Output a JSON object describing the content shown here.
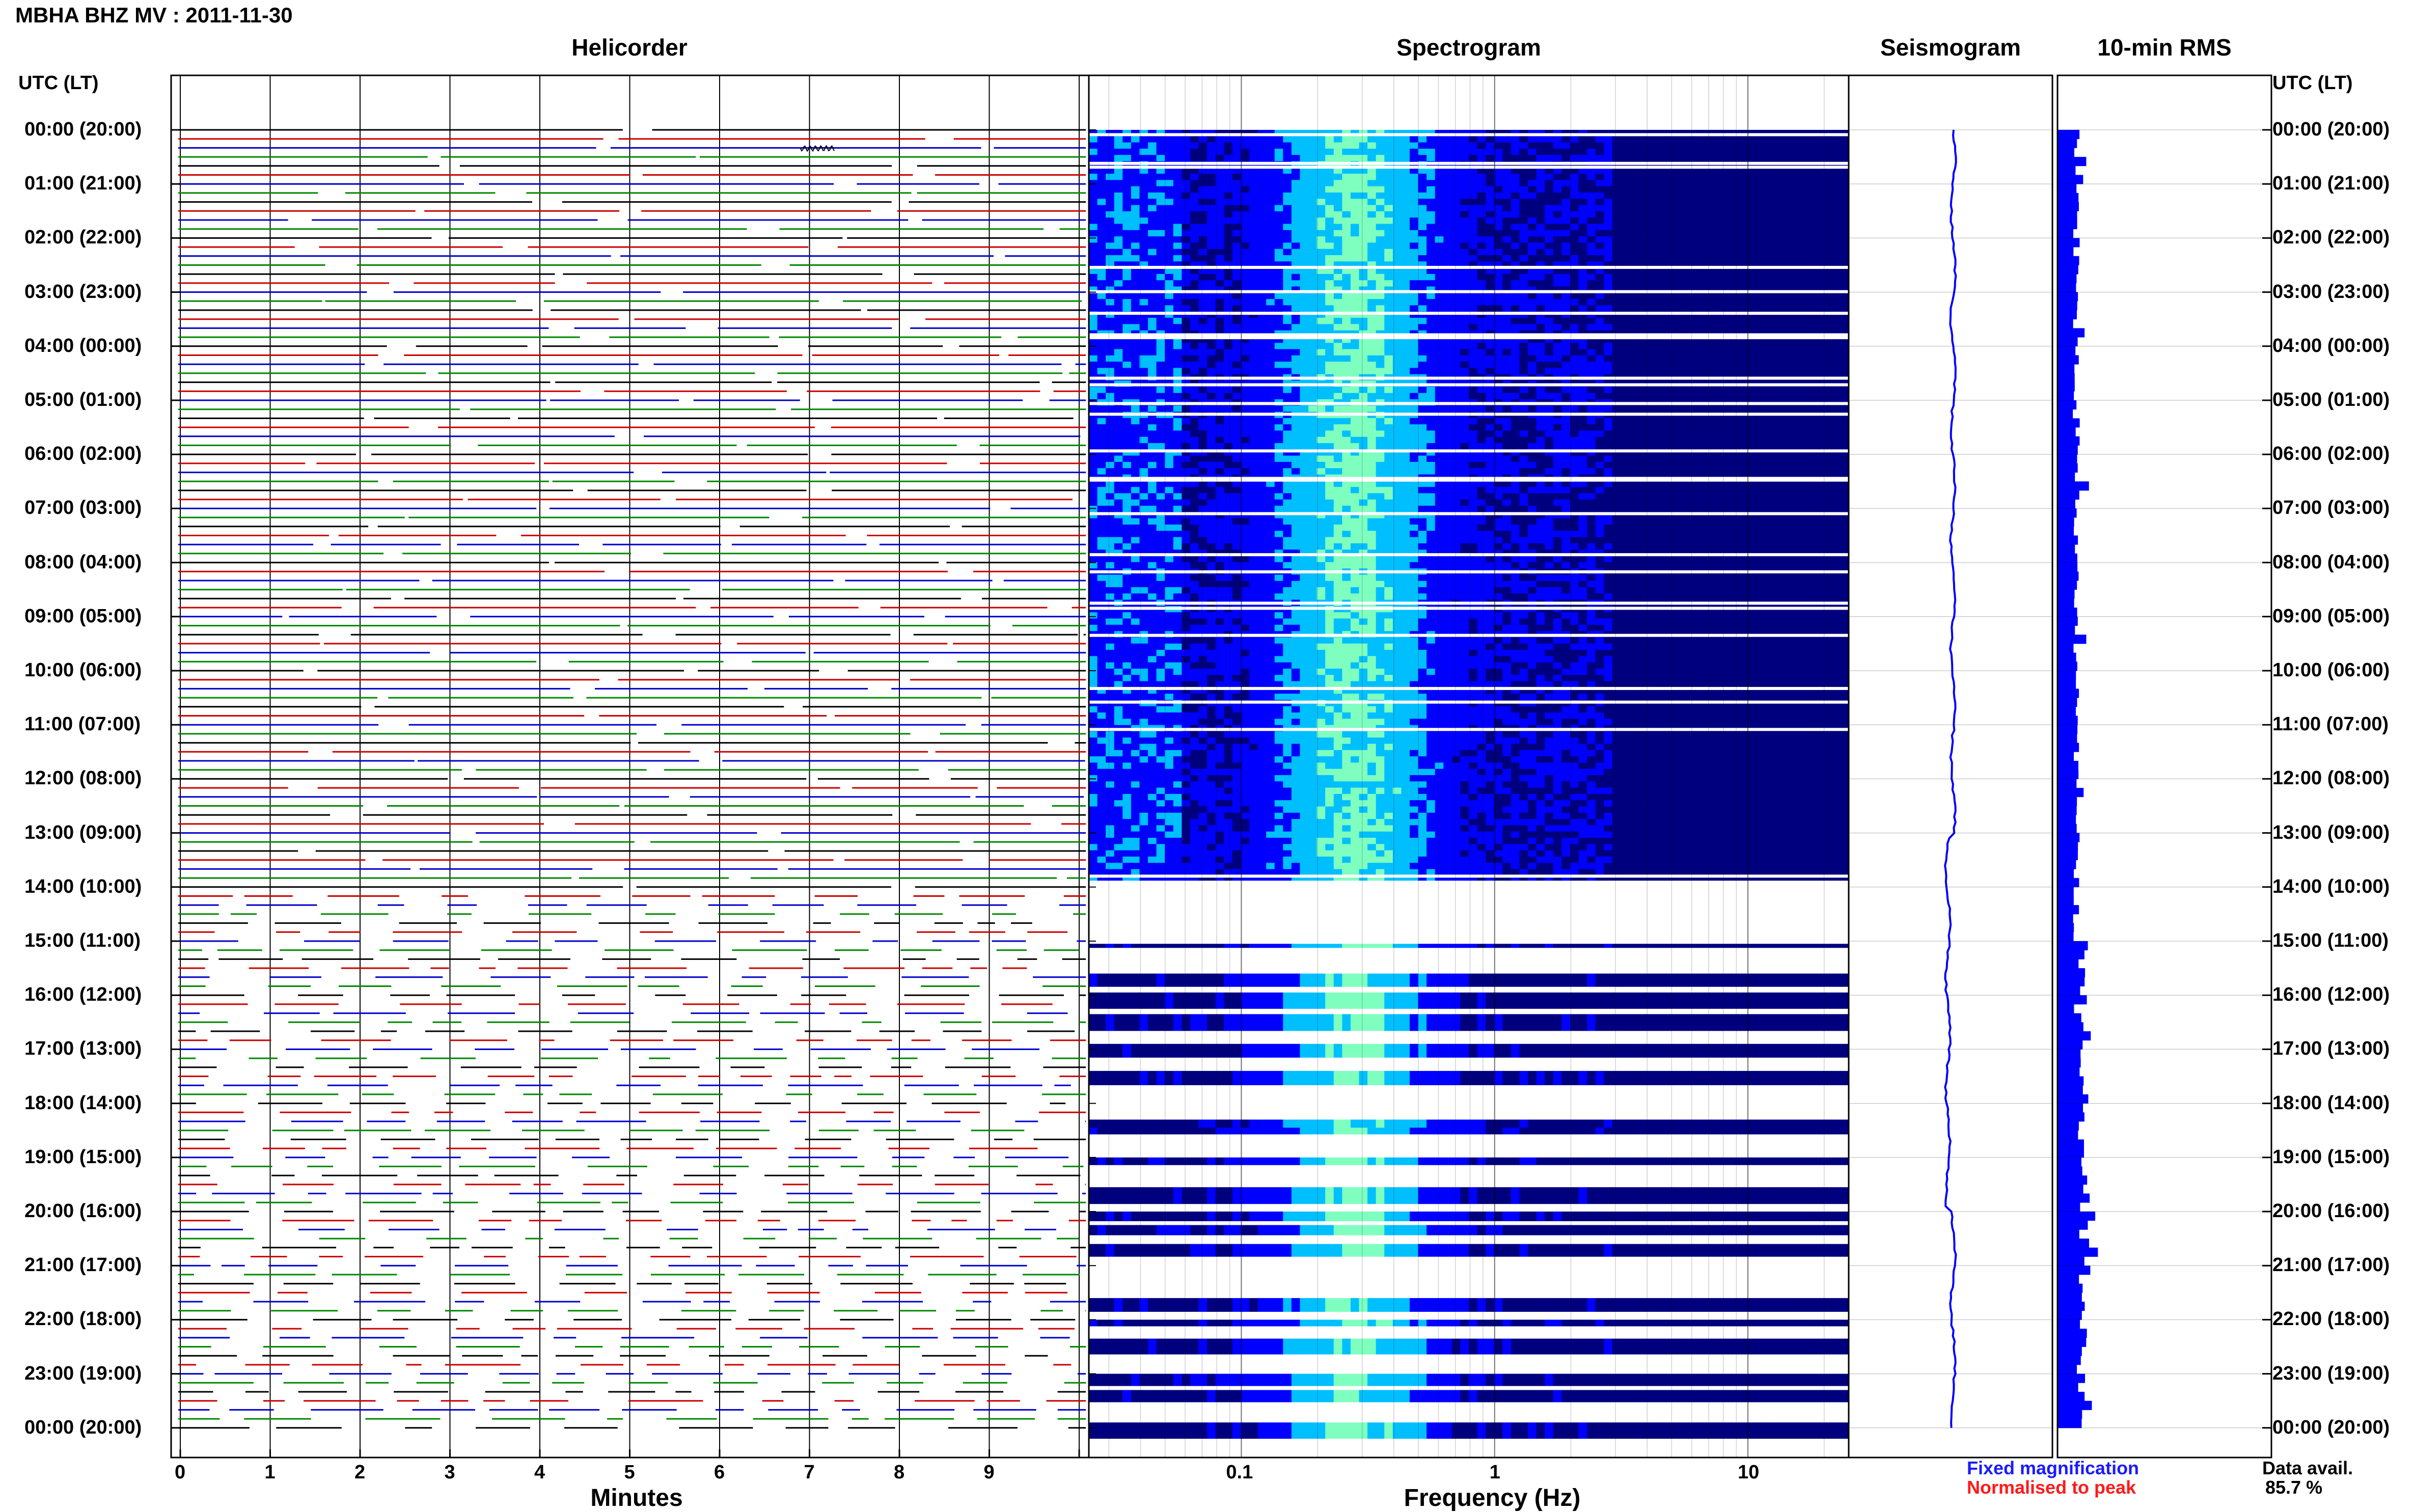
{
  "page": {
    "title": "MBHA BHZ MV : 2011-11-30",
    "utc_header_left": "UTC (LT)",
    "utc_header_right": "UTC (LT)"
  },
  "panels": {
    "helicorder": "Helicorder",
    "spectrogram": "Spectrogram",
    "seismogram": "Seismogram",
    "rms": "10-min RMS"
  },
  "axes": {
    "minutes_label": "Minutes",
    "frequency_label": "Frequency (Hz)",
    "minute_ticks": [
      "0",
      "1",
      "2",
      "3",
      "4",
      "5",
      "6",
      "7",
      "8",
      "9"
    ],
    "frequency_ticks": [
      "0.1",
      "1",
      "10"
    ]
  },
  "legend": {
    "fixed": "Fixed magnification",
    "normalised": "Normalised to peak",
    "fixed_color": "#1a1aff",
    "normalised_color": "#ff1a1a"
  },
  "availability": {
    "label": "Data avail.",
    "value": "85.7 %"
  },
  "time_labels": [
    "00:00 (20:00)",
    "01:00 (21:00)",
    "02:00 (22:00)",
    "03:00 (23:00)",
    "04:00 (00:00)",
    "05:00 (01:00)",
    "06:00 (02:00)",
    "07:00 (03:00)",
    "08:00 (04:00)",
    "09:00 (05:00)",
    "10:00 (06:00)",
    "11:00 (07:00)",
    "12:00 (08:00)",
    "13:00 (09:00)",
    "14:00 (10:00)",
    "15:00 (11:00)",
    "16:00 (12:00)",
    "17:00 (13:00)",
    "18:00 (14:00)",
    "19:00 (15:00)",
    "20:00 (16:00)",
    "21:00 (17:00)",
    "22:00 (18:00)",
    "23:00 (19:00)",
    "00:00 (20:00)"
  ],
  "chart_data": [
    {
      "type": "line",
      "name": "helicorder",
      "title": "Helicorder",
      "xlabel": "Minutes",
      "xlim": [
        0,
        10
      ],
      "rows_per_hour": 6,
      "trace_colors": [
        "#000000",
        "#cc0000",
        "#0000cc",
        "#008800"
      ]
    },
    {
      "type": "heatmap",
      "name": "spectrogram",
      "title": "Spectrogram",
      "xlabel": "Frequency (Hz)",
      "x_scale": "log",
      "xlim": [
        0.025,
        25
      ],
      "colormap": [
        "#00007f",
        "#0000ff",
        "#00bfff",
        "#7fffbf",
        "#ffff00"
      ]
    },
    {
      "type": "line",
      "name": "seismogram",
      "title": "Seismogram",
      "color": "#0000ff"
    },
    {
      "type": "bar",
      "name": "rms",
      "title": "10-min RMS",
      "orientation": "horizontal",
      "color": "#0000ff"
    }
  ]
}
